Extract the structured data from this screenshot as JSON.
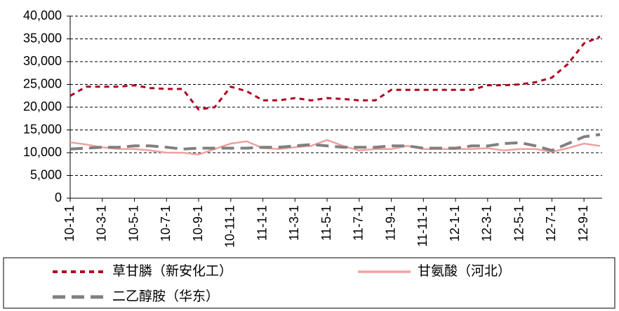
{
  "chart_data": {
    "type": "line",
    "categories": [
      "10-1-1",
      null,
      "10-3-1",
      null,
      "10-5-1",
      null,
      "10-7-1",
      null,
      "10-9-1",
      null,
      "10-11-1",
      null,
      "11-1-1",
      null,
      "11-3-1",
      null,
      "11-5-1",
      null,
      "11-7-1",
      null,
      "11-9-1",
      null,
      "11-11-1",
      null,
      "12-1-1",
      null,
      "12-3-1",
      null,
      "12-5-1",
      null,
      "12-7-1",
      null,
      "12-9-1",
      null
    ],
    "series": [
      {
        "name": "草甘膦（新安化工）",
        "color": "#b00020",
        "line_style": "short-dash",
        "values": [
          22500,
          24500,
          24500,
          24500,
          24800,
          24200,
          24000,
          24000,
          19500,
          20000,
          24500,
          23500,
          21500,
          21500,
          22000,
          21500,
          22000,
          21800,
          21500,
          21500,
          23800,
          23800,
          23800,
          23800,
          23800,
          23800,
          24800,
          24800,
          25000,
          25500,
          26500,
          29500,
          34000,
          35500
        ]
      },
      {
        "name": "甘氨酸（河北）",
        "color": "#f0a0a0",
        "line_style": "solid",
        "values": [
          12300,
          11800,
          11200,
          10800,
          10800,
          10500,
          10000,
          10000,
          9600,
          10800,
          12000,
          12500,
          11000,
          10800,
          11200,
          11500,
          12800,
          11500,
          10500,
          10800,
          10800,
          11500,
          10800,
          10800,
          10800,
          10800,
          11000,
          10500,
          10800,
          10800,
          10200,
          11000,
          12000,
          11500
        ]
      },
      {
        "name": "二乙醇胺（华东）",
        "color": "#808080",
        "line_style": "long-dash",
        "values": [
          10800,
          11000,
          11200,
          11200,
          11500,
          11500,
          11200,
          10800,
          11000,
          11000,
          11000,
          11000,
          11200,
          11200,
          11500,
          11800,
          11500,
          11200,
          11200,
          11200,
          11500,
          11500,
          11000,
          11000,
          11000,
          11500,
          11500,
          12000,
          12200,
          11500,
          10500,
          12000,
          13500,
          14000
        ]
      }
    ],
    "ylim": [
      0,
      40000
    ],
    "yticks": [
      0,
      {
        "value": 5000,
        "label": "5,000"
      },
      {
        "value": 10000,
        "label": "10,000"
      },
      {
        "value": 15000,
        "label": "15,000"
      },
      {
        "value": 20000,
        "label": "20,000"
      },
      {
        "value": 25000,
        "label": "25,000"
      },
      {
        "value": 30000,
        "label": "30,000"
      },
      {
        "value": 35000,
        "label": "35,000"
      },
      {
        "value": 40000,
        "label": "40,000"
      }
    ],
    "grid": true
  }
}
